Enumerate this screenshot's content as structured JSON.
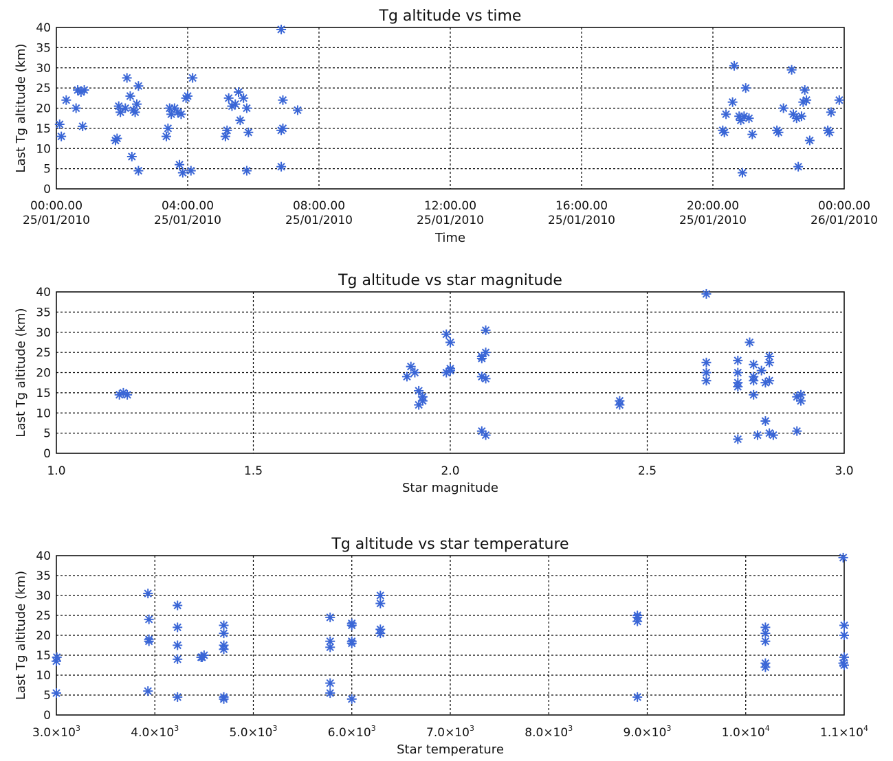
{
  "marker_color": "#3a66d6",
  "chart_data": [
    {
      "type": "scatter",
      "title": "Tg altitude vs time",
      "xlabel": "Time",
      "ylabel": "Last Tg altitude (km)",
      "xlim": [
        0,
        24
      ],
      "ylim": [
        0,
        40
      ],
      "yticks": [
        "0",
        "5",
        "10",
        "15",
        "20",
        "25",
        "30",
        "35",
        "40"
      ],
      "xticks": [
        {
          "value": 0,
          "line1": "00:00.00",
          "line2": "25/01/2010"
        },
        {
          "value": 4,
          "line1": "04:00.00",
          "line2": "25/01/2010"
        },
        {
          "value": 8,
          "line1": "08:00.00",
          "line2": "25/01/2010"
        },
        {
          "value": 12,
          "line1": "12:00.00",
          "line2": "25/01/2010"
        },
        {
          "value": 16,
          "line1": "16:00.00",
          "line2": "25/01/2010"
        },
        {
          "value": 20,
          "line1": "20:00.00",
          "line2": "25/01/2010"
        },
        {
          "value": 24,
          "line1": "00:00.00",
          "line2": "26/01/2010"
        }
      ],
      "grid": true,
      "points": [
        [
          0.1,
          16
        ],
        [
          0.15,
          13
        ],
        [
          0.3,
          22
        ],
        [
          0.6,
          20
        ],
        [
          0.65,
          24.5
        ],
        [
          0.75,
          24
        ],
        [
          0.85,
          24.5
        ],
        [
          0.8,
          15.5
        ],
        [
          1.8,
          12
        ],
        [
          1.85,
          12.5
        ],
        [
          1.9,
          20.5
        ],
        [
          1.95,
          19
        ],
        [
          2.1,
          20
        ],
        [
          2.15,
          27.5
        ],
        [
          2.25,
          23
        ],
        [
          2.3,
          8
        ],
        [
          2.35,
          19.5
        ],
        [
          2.4,
          19
        ],
        [
          2.45,
          21
        ],
        [
          2.5,
          25.5
        ],
        [
          2.5,
          4.5
        ],
        [
          3.35,
          13
        ],
        [
          3.4,
          15
        ],
        [
          3.45,
          20
        ],
        [
          3.5,
          18.5
        ],
        [
          3.6,
          20
        ],
        [
          3.7,
          19
        ],
        [
          3.75,
          6
        ],
        [
          3.8,
          18.5
        ],
        [
          3.85,
          4
        ],
        [
          3.95,
          22.5
        ],
        [
          4.0,
          23
        ],
        [
          4.15,
          27.5
        ],
        [
          4.1,
          4.5
        ],
        [
          5.15,
          13
        ],
        [
          5.2,
          14.5
        ],
        [
          5.25,
          22.5
        ],
        [
          5.35,
          20.5
        ],
        [
          5.45,
          21
        ],
        [
          5.55,
          24
        ],
        [
          5.6,
          17
        ],
        [
          5.7,
          22.5
        ],
        [
          5.8,
          20
        ],
        [
          5.85,
          14
        ],
        [
          5.8,
          4.5
        ],
        [
          6.85,
          39.5
        ],
        [
          6.85,
          5.5
        ],
        [
          6.9,
          15
        ],
        [
          6.85,
          14.5
        ],
        [
          6.9,
          22
        ],
        [
          7.35,
          19.5
        ],
        [
          20.3,
          14.5
        ],
        [
          20.35,
          14
        ],
        [
          20.4,
          18.5
        ],
        [
          20.6,
          21.5
        ],
        [
          20.65,
          30.5
        ],
        [
          20.8,
          18
        ],
        [
          20.85,
          17
        ],
        [
          20.9,
          4
        ],
        [
          20.95,
          18
        ],
        [
          21.0,
          25
        ],
        [
          21.1,
          17.5
        ],
        [
          21.2,
          13.5
        ],
        [
          21.95,
          14.5
        ],
        [
          22.0,
          14
        ],
        [
          22.15,
          20
        ],
        [
          22.4,
          29.5
        ],
        [
          22.45,
          18.5
        ],
        [
          22.55,
          17.5
        ],
        [
          22.6,
          5.5
        ],
        [
          22.7,
          18
        ],
        [
          22.75,
          21.5
        ],
        [
          22.8,
          24.5
        ],
        [
          22.85,
          22
        ],
        [
          22.95,
          12
        ],
        [
          23.5,
          14.5
        ],
        [
          23.55,
          14
        ],
        [
          23.6,
          19
        ],
        [
          23.85,
          22
        ]
      ]
    },
    {
      "type": "scatter",
      "title": "Tg altitude vs star magnitude",
      "xlabel": "Star magnitude",
      "ylabel": "Last Tg altitude (km)",
      "xlim": [
        1.0,
        3.0
      ],
      "ylim": [
        0,
        40
      ],
      "yticks": [
        "0",
        "5",
        "10",
        "15",
        "20",
        "25",
        "30",
        "35",
        "40"
      ],
      "xticks": [
        {
          "value": 1.0,
          "label": "1.0"
        },
        {
          "value": 1.5,
          "label": "1.5"
        },
        {
          "value": 2.0,
          "label": "2.0"
        },
        {
          "value": 2.5,
          "label": "2.5"
        },
        {
          "value": 3.0,
          "label": "3.0"
        }
      ],
      "grid": true,
      "points": [
        [
          1.16,
          14.5
        ],
        [
          1.17,
          15
        ],
        [
          1.18,
          14.5
        ],
        [
          1.89,
          19
        ],
        [
          1.9,
          21.5
        ],
        [
          1.91,
          20
        ],
        [
          1.92,
          12
        ],
        [
          1.93,
          14
        ],
        [
          1.92,
          15.5
        ],
        [
          1.93,
          13
        ],
        [
          1.99,
          20
        ],
        [
          2.0,
          21
        ],
        [
          2.0,
          27.5
        ],
        [
          1.99,
          29.5
        ],
        [
          2.0,
          20.5
        ],
        [
          2.08,
          24
        ],
        [
          2.09,
          25
        ],
        [
          2.08,
          23.5
        ],
        [
          2.09,
          30.5
        ],
        [
          2.08,
          19
        ],
        [
          2.09,
          18.5
        ],
        [
          2.08,
          5.5
        ],
        [
          2.09,
          4.5
        ],
        [
          2.43,
          13
        ],
        [
          2.43,
          12
        ],
        [
          2.65,
          39.5
        ],
        [
          2.65,
          22.5
        ],
        [
          2.65,
          20
        ],
        [
          2.65,
          18
        ],
        [
          2.73,
          23
        ],
        [
          2.73,
          20
        ],
        [
          2.73,
          17.5
        ],
        [
          2.73,
          16.5
        ],
        [
          2.73,
          3.5
        ],
        [
          2.76,
          27.5
        ],
        [
          2.77,
          22
        ],
        [
          2.77,
          19
        ],
        [
          2.77,
          18
        ],
        [
          2.77,
          14.5
        ],
        [
          2.78,
          4.5
        ],
        [
          2.79,
          20.5
        ],
        [
          2.8,
          17.5
        ],
        [
          2.8,
          8
        ],
        [
          2.81,
          24
        ],
        [
          2.81,
          22.5
        ],
        [
          2.81,
          18
        ],
        [
          2.82,
          4.5
        ],
        [
          2.81,
          5
        ],
        [
          2.88,
          14
        ],
        [
          2.89,
          13
        ],
        [
          2.89,
          14.5
        ],
        [
          2.88,
          5.5
        ]
      ]
    },
    {
      "type": "scatter",
      "title": "Tg altitude vs star temperature",
      "xlabel": "Star temperature",
      "ylabel": "Last Tg altitude (km)",
      "xlim": [
        3000,
        11000
      ],
      "ylim": [
        0,
        40
      ],
      "yticks": [
        "0",
        "5",
        "10",
        "15",
        "20",
        "25",
        "30",
        "35",
        "40"
      ],
      "xticks": [
        {
          "value": 3000,
          "mant": "3.0×10",
          "exp": "3"
        },
        {
          "value": 4000,
          "mant": "4.0×10",
          "exp": "3"
        },
        {
          "value": 5000,
          "mant": "5.0×10",
          "exp": "3"
        },
        {
          "value": 6000,
          "mant": "6.0×10",
          "exp": "3"
        },
        {
          "value": 7000,
          "mant": "7.0×10",
          "exp": "3"
        },
        {
          "value": 8000,
          "mant": "8.0×10",
          "exp": "3"
        },
        {
          "value": 9000,
          "mant": "9.0×10",
          "exp": "3"
        },
        {
          "value": 10000,
          "mant": "1.0×10",
          "exp": "4"
        },
        {
          "value": 11000,
          "mant": "1.1×10",
          "exp": "4"
        }
      ],
      "grid": true,
      "points": [
        [
          3000,
          13.5
        ],
        [
          3005,
          14.5
        ],
        [
          3000,
          5.5
        ],
        [
          3930,
          30.5
        ],
        [
          3940,
          24
        ],
        [
          3940,
          19
        ],
        [
          3940,
          18.5
        ],
        [
          3930,
          6
        ],
        [
          4230,
          27.5
        ],
        [
          4230,
          22
        ],
        [
          4230,
          17.5
        ],
        [
          4230,
          14
        ],
        [
          4230,
          4.5
        ],
        [
          4470,
          14.5
        ],
        [
          4500,
          15
        ],
        [
          4480,
          14.5
        ],
        [
          4700,
          22.5
        ],
        [
          4700,
          20.5
        ],
        [
          4700,
          17.5
        ],
        [
          4700,
          16.5
        ],
        [
          4700,
          4
        ],
        [
          4700,
          4.5
        ],
        [
          5780,
          24.5
        ],
        [
          5780,
          18.5
        ],
        [
          5780,
          17
        ],
        [
          5780,
          8
        ],
        [
          5780,
          5.5
        ],
        [
          6000,
          23
        ],
        [
          6000,
          22.5
        ],
        [
          6000,
          18.5
        ],
        [
          6000,
          18
        ],
        [
          6000,
          4
        ],
        [
          6290,
          30
        ],
        [
          6290,
          28
        ],
        [
          6290,
          21.5
        ],
        [
          6290,
          20.5
        ],
        [
          8900,
          25
        ],
        [
          8900,
          23.5
        ],
        [
          8900,
          24.5
        ],
        [
          8900,
          4.5
        ],
        [
          10200,
          22
        ],
        [
          10200,
          20.5
        ],
        [
          10200,
          18.5
        ],
        [
          10200,
          13
        ],
        [
          10200,
          12
        ],
        [
          10990,
          39.5
        ],
        [
          11000,
          22.5
        ],
        [
          11000,
          20
        ],
        [
          11000,
          14.5
        ],
        [
          10990,
          13
        ],
        [
          11000,
          12.5
        ]
      ]
    }
  ]
}
